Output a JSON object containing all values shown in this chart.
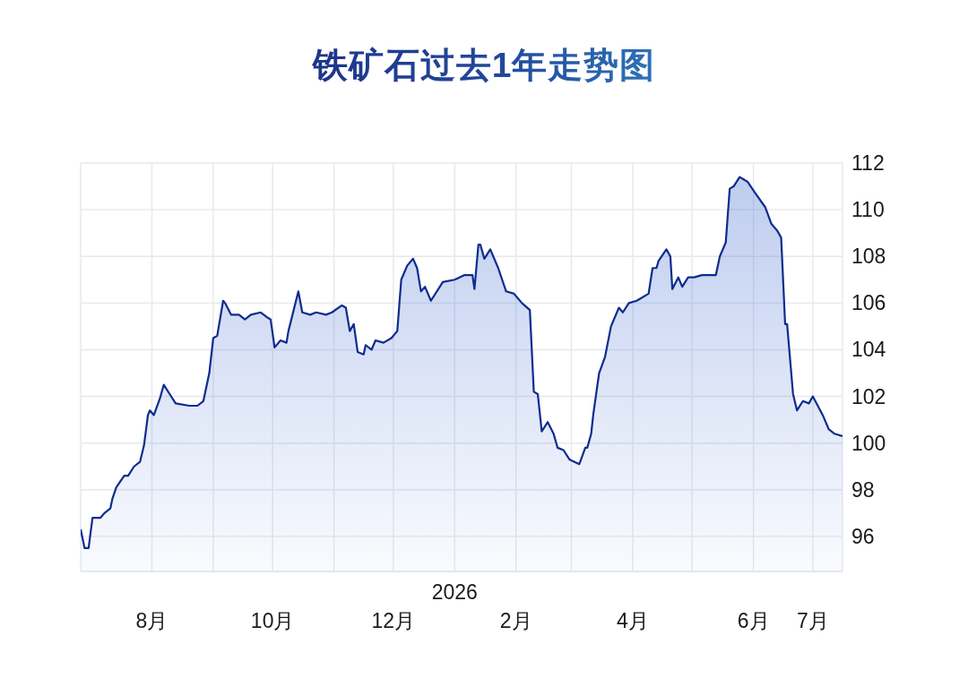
{
  "chart_data": {
    "type": "area",
    "title": "铁矿石过去1年走势图",
    "x": [
      "2025-06-26",
      "2025-06-28",
      "2025-06-30",
      "2025-07-02",
      "2025-07-06",
      "2025-07-08",
      "2025-07-11",
      "2025-07-12",
      "2025-07-14",
      "2025-07-18",
      "2025-07-20",
      "2025-07-23",
      "2025-07-26",
      "2025-07-28",
      "2025-07-30",
      "2025-07-31",
      "2025-08-02",
      "2025-08-05",
      "2025-08-07",
      "2025-08-10",
      "2025-08-13",
      "2025-08-20",
      "2025-08-24",
      "2025-08-27",
      "2025-08-30",
      "2025-09-01",
      "2025-09-03",
      "2025-09-06",
      "2025-09-07",
      "2025-09-10",
      "2025-09-14",
      "2025-09-17",
      "2025-09-20",
      "2025-09-25",
      "2025-09-28",
      "2025-09-30",
      "2025-10-02",
      "2025-10-05",
      "2025-10-08",
      "2025-10-09",
      "2025-10-14",
      "2025-10-16",
      "2025-10-20",
      "2025-10-23",
      "2025-10-28",
      "2025-10-31",
      "2025-11-05",
      "2025-11-07",
      "2025-11-09",
      "2025-11-11",
      "2025-11-13",
      "2025-11-16",
      "2025-11-17",
      "2025-11-20",
      "2025-11-22",
      "2025-11-26",
      "2025-11-30",
      "2025-12-03",
      "2025-12-05",
      "2025-12-08",
      "2025-12-11",
      "2025-12-13",
      "2025-12-15",
      "2025-12-17",
      "2025-12-20",
      "2025-12-26",
      "2026-01-01",
      "2026-01-06",
      "2026-01-10",
      "2026-01-11",
      "2026-01-13",
      "2026-01-14",
      "2026-01-16",
      "2026-01-19",
      "2026-01-23",
      "2026-01-27",
      "2026-01-31",
      "2026-02-04",
      "2026-02-08",
      "2026-02-10",
      "2026-02-12",
      "2026-02-14",
      "2026-02-17",
      "2026-02-20",
      "2026-02-22",
      "2026-02-25",
      "2026-02-28",
      "2026-03-05",
      "2026-03-08",
      "2026-03-09",
      "2026-03-11",
      "2026-03-12",
      "2026-03-15",
      "2026-03-18",
      "2026-03-21",
      "2026-03-25",
      "2026-03-27",
      "2026-03-30",
      "2026-04-03",
      "2026-04-09",
      "2026-04-11",
      "2026-04-13",
      "2026-04-14",
      "2026-04-18",
      "2026-04-20",
      "2026-04-21",
      "2026-04-24",
      "2026-04-26",
      "2026-04-29",
      "2026-05-02",
      "2026-05-06",
      "2026-05-13",
      "2026-05-15",
      "2026-05-18",
      "2026-05-20",
      "2026-05-22",
      "2026-05-25",
      "2026-05-27",
      "2026-05-29",
      "2026-06-02",
      "2026-06-07",
      "2026-06-10",
      "2026-06-13",
      "2026-06-15",
      "2026-06-17",
      "2026-06-18",
      "2026-06-21",
      "2026-06-23",
      "2026-06-26",
      "2026-06-29",
      "2026-07-01",
      "2026-07-06",
      "2026-07-09",
      "2026-07-12",
      "2026-07-16"
    ],
    "values": [
      96.3,
      95.5,
      95.5,
      96.8,
      96.8,
      97.0,
      97.2,
      97.6,
      98.1,
      98.6,
      98.6,
      99.0,
      99.2,
      99.9,
      101.2,
      101.4,
      101.2,
      101.9,
      102.5,
      102.1,
      101.7,
      101.6,
      101.6,
      101.8,
      103.0,
      104.5,
      104.6,
      106.1,
      106.0,
      105.5,
      105.5,
      105.3,
      105.5,
      105.6,
      105.4,
      105.3,
      104.1,
      104.4,
      104.3,
      104.8,
      106.5,
      105.6,
      105.5,
      105.6,
      105.5,
      105.6,
      105.9,
      105.8,
      104.8,
      105.1,
      103.9,
      103.8,
      104.2,
      104.0,
      104.4,
      104.3,
      104.5,
      104.8,
      107.0,
      107.6,
      107.9,
      107.5,
      106.5,
      106.7,
      106.1,
      106.9,
      107.0,
      107.2,
      107.2,
      106.6,
      108.5,
      108.5,
      107.9,
      108.3,
      107.5,
      106.5,
      106.4,
      106.0,
      105.7,
      102.2,
      102.1,
      100.5,
      100.9,
      100.4,
      99.8,
      99.7,
      99.3,
      99.1,
      99.8,
      99.8,
      100.4,
      101.2,
      103.0,
      103.7,
      105.0,
      105.8,
      105.6,
      106.0,
      106.1,
      106.4,
      107.5,
      107.5,
      107.8,
      108.3,
      108.0,
      106.6,
      107.1,
      106.7,
      107.1,
      107.1,
      107.2,
      107.2,
      108.0,
      108.6,
      110.9,
      111.0,
      111.4,
      111.3,
      111.2,
      110.7,
      110.1,
      109.4,
      109.1,
      108.8,
      105.1,
      105.1,
      102.1,
      101.4,
      101.8,
      101.7,
      102.0,
      101.2,
      100.6,
      100.4,
      100.3
    ],
    "color": "#0e2c8e",
    "xlim": [
      "2025-06-26",
      "2026-07-16"
    ],
    "xticks": [
      {
        "value": "2025-08-01",
        "label": "8月"
      },
      {
        "value": "2025-09-01",
        "label": null
      },
      {
        "value": "2025-10-01",
        "label": "10月"
      },
      {
        "value": "2025-11-01",
        "label": null
      },
      {
        "value": "2025-12-01",
        "label": "12月"
      },
      {
        "value": "2026-01-01",
        "label": null
      },
      {
        "value": "2026-02-01",
        "label": "2月"
      },
      {
        "value": "2026-03-01",
        "label": null
      },
      {
        "value": "2026-04-01",
        "label": "4月"
      },
      {
        "value": "2026-05-01",
        "label": null
      },
      {
        "value": "2026-06-01",
        "label": "6月"
      },
      {
        "value": "2026-07-01",
        "label": "7月"
      }
    ],
    "ylim": [
      94.5,
      112
    ],
    "yticks": [
      96,
      98,
      100,
      102,
      104,
      106,
      108,
      110,
      112
    ],
    "annotations": [
      "2026"
    ],
    "grid": true
  }
}
